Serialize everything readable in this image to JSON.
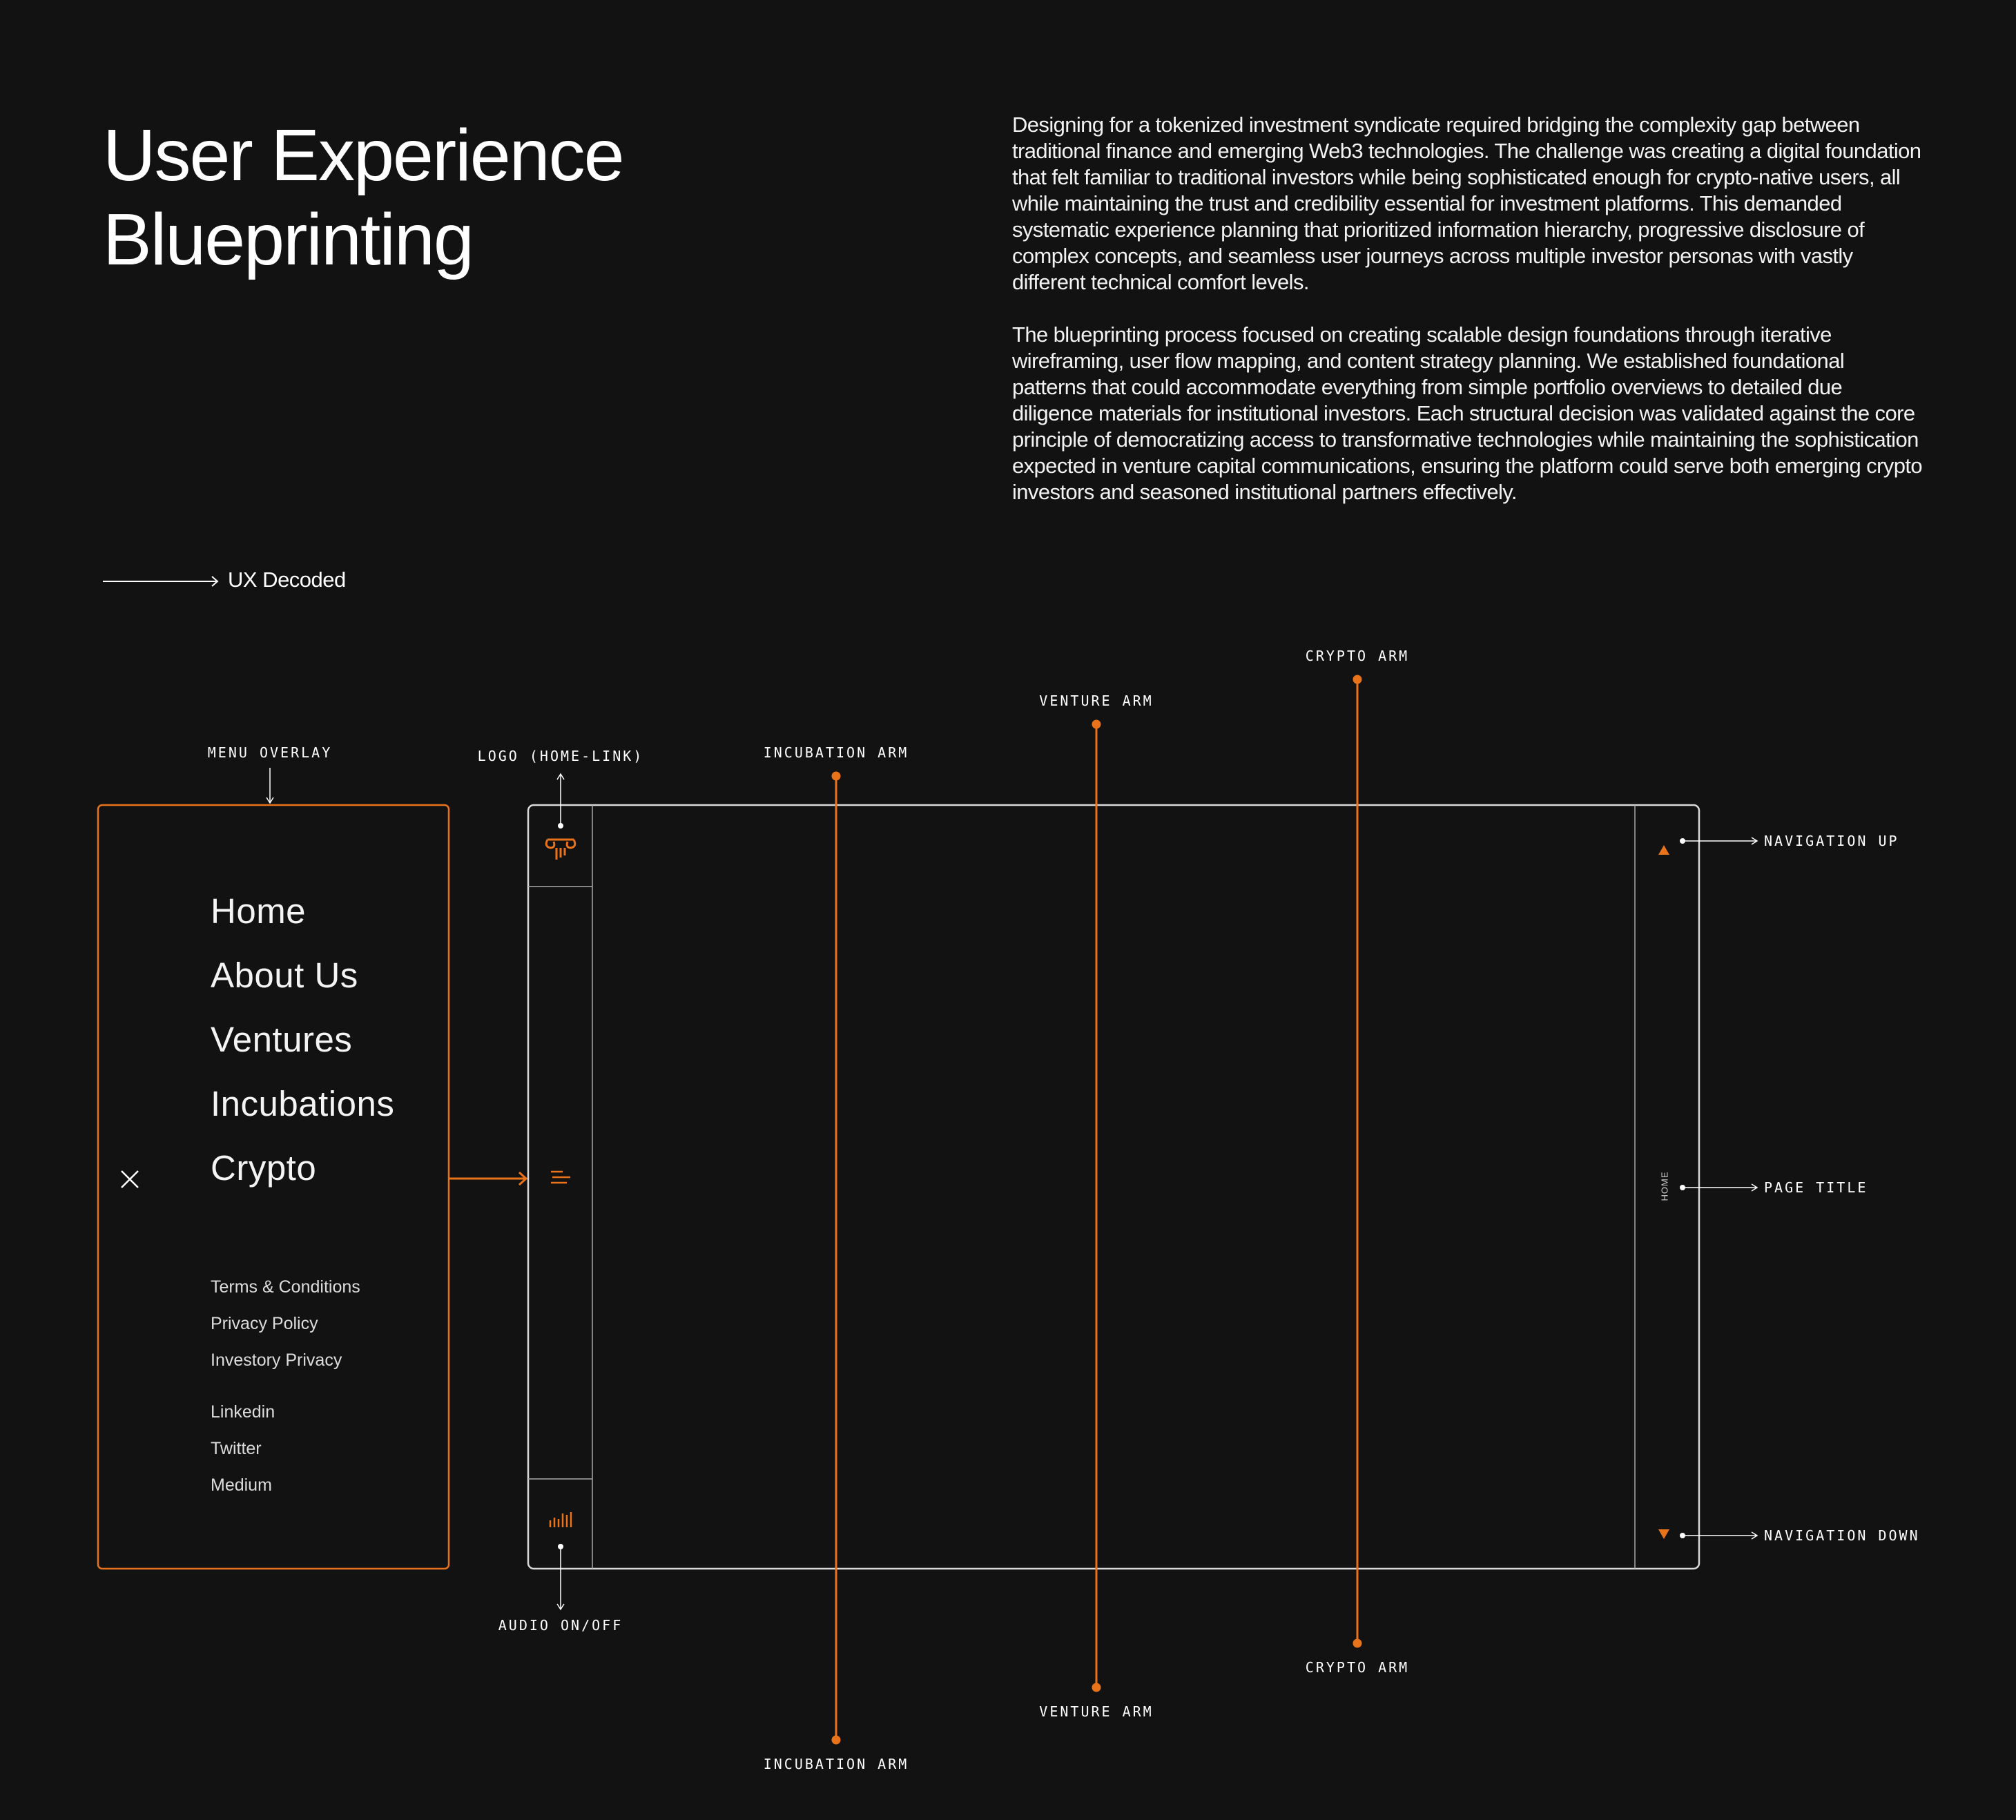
{
  "header": {
    "title_line1": "User Experience",
    "title_line2": "Blueprinting"
  },
  "intro": {
    "paragraph1": "Designing for a tokenized investment syndicate required bridging the complexity gap between traditional finance and emerging Web3 technologies. The challenge was creating a digital foundation that felt familiar to traditional investors while being sophisticated enough for crypto-native users, all while maintaining the trust and credibility essential for investment platforms. This demanded systematic experience planning that prioritized information hierarchy, progressive disclosure of complex concepts, and seamless user journeys across multiple investor personas with vastly different technical comfort levels.",
    "paragraph2": "The blueprinting process focused on creating scalable design foundations through iterative wireframing, user flow mapping, and content strategy planning. We established foundational patterns that could accommodate everything from simple portfolio overviews to detailed due diligence materials for institutional investors. Each structural decision was validated against the core principle of democratizing access to transformative technologies while maintaining the sophistication expected in venture capital communications, ensuring the platform could serve both emerging crypto investors and seasoned institutional partners effectively."
  },
  "section_link": {
    "label": "UX Decoded"
  },
  "annotations": {
    "menu_overlay": "MENU OVERLAY",
    "logo": "LOGO (HOME-LINK)",
    "incubation_top": "INCUBATION ARM",
    "venture_top": "VENTURE ARM",
    "crypto_top": "CRYPTO ARM",
    "navigation_up": "NAVIGATION UP",
    "page_title": "PAGE TITLE",
    "navigation_down": "NAVIGATION DOWN",
    "audio": "AUDIO ON/OFF",
    "crypto_bottom": "CRYPTO ARM",
    "venture_bottom": "VENTURE ARM",
    "incubation_bottom": "INCUBATION ARM"
  },
  "menu": {
    "main_items": [
      "Home",
      "About Us",
      "Ventures",
      "Incubations",
      "Crypto"
    ],
    "legal_items": [
      "Terms & Conditions",
      "Privacy Policy",
      "Investory Privacy"
    ],
    "social_items": [
      "Linkedin",
      "Twitter",
      "Medium"
    ]
  },
  "wireframe": {
    "page_title_text": "HOME"
  },
  "icons": {
    "logo": "column-capital-icon",
    "menu": "hamburger-menu-icon",
    "audio": "audio-bars-icon",
    "close": "close-icon",
    "nav_up": "triangle-up-icon",
    "nav_down": "triangle-down-icon"
  },
  "colors": {
    "background": "#121212",
    "text": "#ffffff",
    "accent": "#e8731a",
    "wire": "#d9d9d9"
  }
}
